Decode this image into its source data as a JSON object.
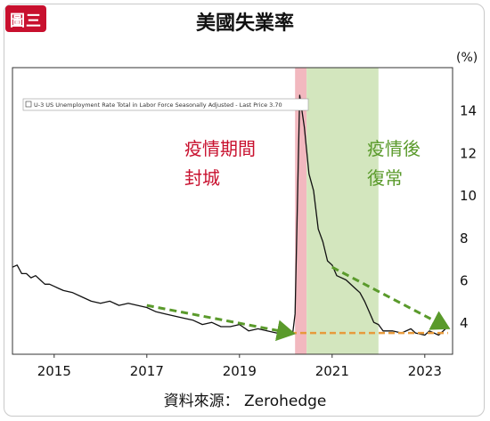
{
  "header": {
    "badge": "圖三",
    "title": "美國失業率"
  },
  "source": "資料來源： Zerohedge",
  "chart_data": {
    "type": "line",
    "ylabel": "(%)",
    "ylim": [
      2.5,
      16
    ],
    "xlim": [
      2014.1,
      2023.6
    ],
    "y_ticks": [
      4,
      6,
      8,
      10,
      12,
      14
    ],
    "x_ticks": [
      2015,
      2017,
      2019,
      2021,
      2023
    ],
    "legend": {
      "text": "U-3 US Unemployment Rate Total in Labor Force Seasonally Adjusted - Last Price 3.70",
      "placement": "top-left"
    },
    "annotations": {
      "lockdown": [
        "疫情期間",
        "封城"
      ],
      "recovery": [
        "疫情後",
        "復常"
      ]
    },
    "shaded_periods": [
      {
        "label": "lockdown",
        "from": 2020.2,
        "to": 2020.45,
        "color": "#f2b8bf"
      },
      {
        "label": "recovery",
        "from": 2020.45,
        "to": 2022.0,
        "color": "#d3e6be"
      }
    ],
    "series": [
      {
        "color": "#111111",
        "points": [
          [
            2014.1,
            6.6
          ],
          [
            2014.2,
            6.7
          ],
          [
            2014.3,
            6.3
          ],
          [
            2014.4,
            6.3
          ],
          [
            2014.5,
            6.1
          ],
          [
            2014.6,
            6.2
          ],
          [
            2014.7,
            6.0
          ],
          [
            2014.8,
            5.8
          ],
          [
            2014.9,
            5.8
          ],
          [
            2015.0,
            5.7
          ],
          [
            2015.1,
            5.6
          ],
          [
            2015.2,
            5.5
          ],
          [
            2015.4,
            5.4
          ],
          [
            2015.6,
            5.2
          ],
          [
            2015.8,
            5.0
          ],
          [
            2016.0,
            4.9
          ],
          [
            2016.2,
            5.0
          ],
          [
            2016.4,
            4.8
          ],
          [
            2016.6,
            4.9
          ],
          [
            2016.8,
            4.8
          ],
          [
            2017.0,
            4.7
          ],
          [
            2017.2,
            4.5
          ],
          [
            2017.4,
            4.4
          ],
          [
            2017.6,
            4.3
          ],
          [
            2017.8,
            4.2
          ],
          [
            2018.0,
            4.1
          ],
          [
            2018.2,
            3.9
          ],
          [
            2018.4,
            4.0
          ],
          [
            2018.6,
            3.8
          ],
          [
            2018.8,
            3.8
          ],
          [
            2019.0,
            3.9
          ],
          [
            2019.2,
            3.6
          ],
          [
            2019.4,
            3.7
          ],
          [
            2019.6,
            3.6
          ],
          [
            2019.8,
            3.5
          ],
          [
            2020.0,
            3.6
          ],
          [
            2020.15,
            3.5
          ],
          [
            2020.2,
            4.4
          ],
          [
            2020.3,
            14.7
          ],
          [
            2020.4,
            13.2
          ],
          [
            2020.5,
            11.0
          ],
          [
            2020.6,
            10.2
          ],
          [
            2020.7,
            8.4
          ],
          [
            2020.8,
            7.8
          ],
          [
            2020.9,
            6.9
          ],
          [
            2021.0,
            6.7
          ],
          [
            2021.1,
            6.2
          ],
          [
            2021.3,
            6.0
          ],
          [
            2021.5,
            5.6
          ],
          [
            2021.6,
            5.4
          ],
          [
            2021.7,
            5.0
          ],
          [
            2021.8,
            4.5
          ],
          [
            2021.9,
            4.0
          ],
          [
            2022.0,
            3.9
          ],
          [
            2022.1,
            3.6
          ],
          [
            2022.3,
            3.6
          ],
          [
            2022.5,
            3.5
          ],
          [
            2022.7,
            3.7
          ],
          [
            2022.8,
            3.5
          ],
          [
            2023.0,
            3.4
          ],
          [
            2023.1,
            3.6
          ],
          [
            2023.3,
            3.4
          ],
          [
            2023.45,
            3.7
          ]
        ]
      }
    ],
    "baseline_y": 3.5,
    "trend_arrows": [
      {
        "from": [
          2017.0,
          4.8
        ],
        "to": [
          2020.1,
          3.5
        ]
      },
      {
        "from": [
          2021.0,
          6.6
        ],
        "to": [
          2023.45,
          3.8
        ]
      }
    ],
    "colors": {
      "line": "#111111",
      "arrow": "#5a9a2b",
      "baseline": "#e79a3c"
    }
  }
}
